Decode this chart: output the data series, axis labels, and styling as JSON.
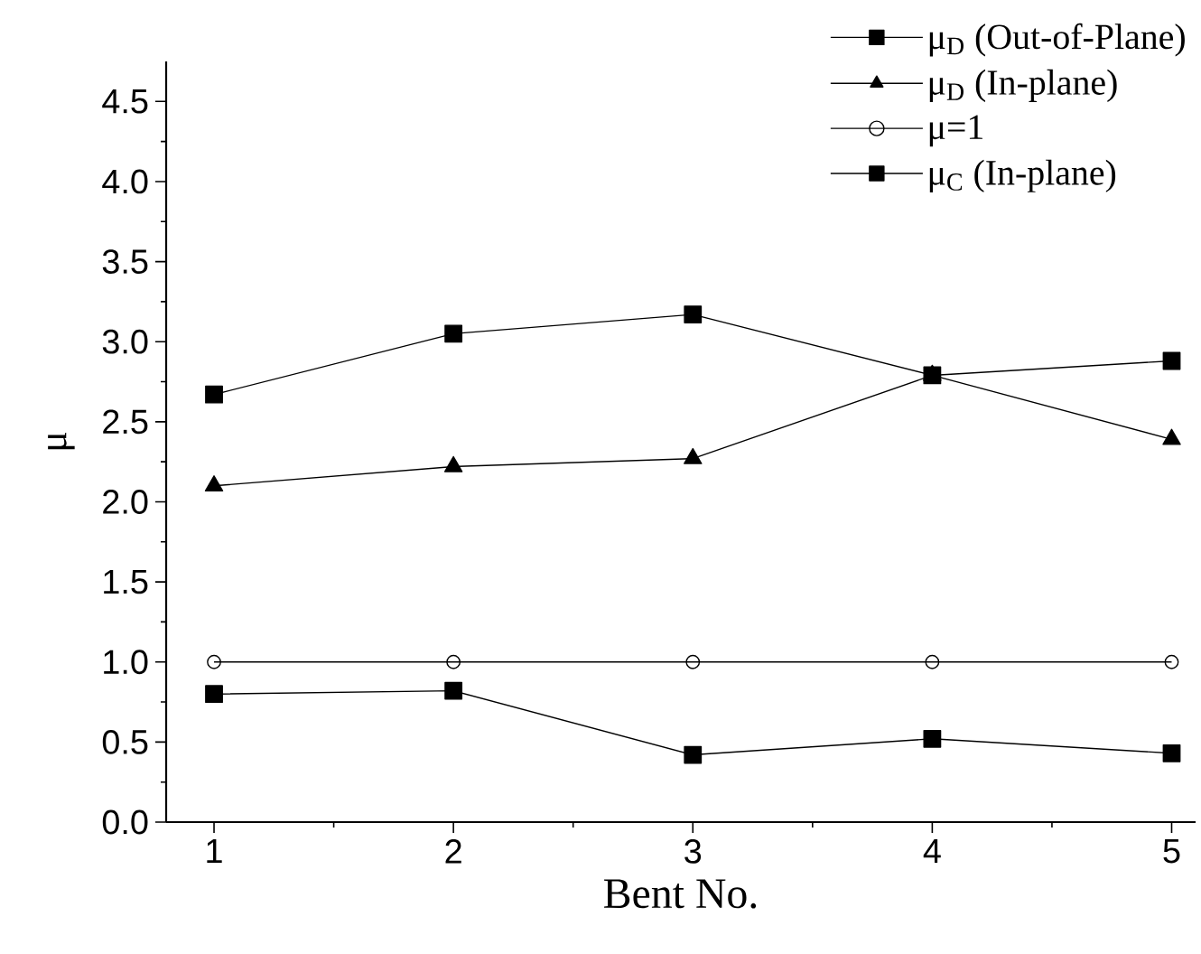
{
  "chart_data": {
    "type": "line",
    "xlabel": "Bent No.",
    "ylabel": "μ",
    "x": [
      1,
      2,
      3,
      4,
      5
    ],
    "series": [
      {
        "name": "μ$_{D}$ (Out-of-Plane)",
        "color": "#000000",
        "marker": "square",
        "values": [
          0.8,
          0.82,
          0.42,
          0.52,
          0.43
        ]
      },
      {
        "name": "μ$_{D}$ (In-plane)",
        "color": "#000000",
        "marker": "triangle",
        "values": [
          2.1,
          2.22,
          2.27,
          2.79,
          2.39
        ]
      },
      {
        "name": "μ=1",
        "color": "#000000",
        "marker": "circle",
        "values": [
          1.0,
          1.0,
          1.0,
          1.0,
          1.0
        ]
      },
      {
        "name": "μ$_{C}$ (In-plane)",
        "color": "#000000",
        "marker": "square",
        "values": [
          2.67,
          3.05,
          3.17,
          2.79,
          2.88
        ]
      }
    ],
    "xlim": [
      0.8,
      5.1
    ],
    "ylim": [
      0,
      4.75
    ],
    "xticks": [
      1,
      2,
      3,
      4,
      5
    ],
    "yticks": [
      {
        "value": 0,
        "label": "0.0"
      },
      {
        "value": 0.5,
        "label": "0.5"
      },
      {
        "value": 1,
        "label": "1.0"
      },
      {
        "value": 1.5,
        "label": "1.5"
      },
      {
        "value": 2,
        "label": "2.0"
      },
      {
        "value": 2.5,
        "label": "2.5"
      },
      {
        "value": 3,
        "label": "3.0"
      },
      {
        "value": 3.5,
        "label": "3.5"
      },
      {
        "value": 4,
        "label": "4.0"
      },
      {
        "value": 4.5,
        "label": "4.5"
      }
    ],
    "grid": false,
    "legend": "top right",
    "line_style": "solid"
  }
}
